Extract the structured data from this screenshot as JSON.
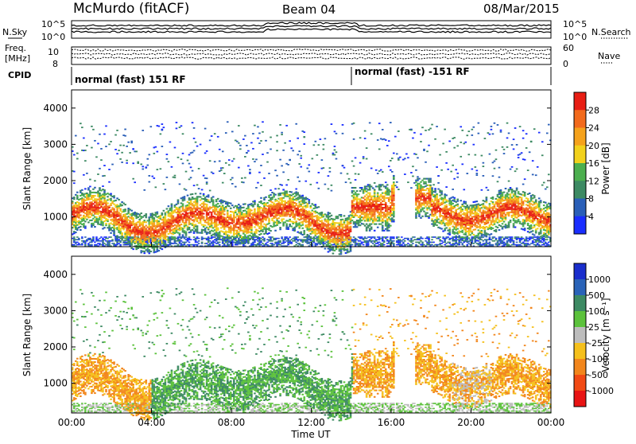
{
  "header": {
    "station": "McMurdo (fitACF)",
    "beam": "Beam 04",
    "date": "08/Mar/2015"
  },
  "top_panels": {
    "nsky_label": "N.Sky",
    "nsearch_label": "N.Search",
    "noise_ticks_left": [
      "10^5",
      "10^0"
    ],
    "noise_ticks_right": [
      "10^5",
      "10^0"
    ],
    "freq_label_line1": "Freq.",
    "freq_label_line2": "[MHz]",
    "freq_ticks": [
      "8",
      "10"
    ],
    "nave_label": "Nave",
    "nave_ticks": [
      "60",
      "0"
    ],
    "cpid_label": "CPID",
    "cpid_segments": [
      {
        "text": "normal (fast) 151 RF",
        "start_hour": 0
      },
      {
        "text": "normal (fast) -151 RF",
        "start_hour": 14
      }
    ]
  },
  "chart_data": [
    {
      "type": "heatmap",
      "title": "",
      "xlabel": "Time UT",
      "ylabel": "Slant Range [km]",
      "xlim": [
        0,
        24
      ],
      "ylim": [
        180,
        4500
      ],
      "x_ticks": [
        "00:00",
        "04:00",
        "08:00",
        "12:00",
        "16:00",
        "20:00",
        "00:00"
      ],
      "y_ticks": [
        "1000",
        "2000",
        "3000",
        "4000"
      ],
      "colorbar": {
        "label": "Power [dB]",
        "ticks": [
          "4",
          "8",
          "12",
          "16",
          "20",
          "24",
          "28"
        ],
        "range": [
          0,
          30
        ],
        "colors": [
          "#1a2eff",
          "#2a5fb8",
          "#3d8a63",
          "#4caf4f",
          "#f2d11c",
          "#f5a21c",
          "#f26a1c",
          "#e81e14"
        ]
      }
    },
    {
      "type": "heatmap",
      "title": "",
      "xlabel": "Time UT",
      "ylabel": "Slant Range [km]",
      "xlim": [
        0,
        24
      ],
      "ylim": [
        180,
        4500
      ],
      "x_ticks": [
        "00:00",
        "04:00",
        "08:00",
        "12:00",
        "16:00",
        "20:00",
        "00:00"
      ],
      "y_ticks": [
        "1000",
        "2000",
        "3000",
        "4000"
      ],
      "colorbar": {
        "label": "Velocity [m s⁻¹]",
        "ticks": [
          "1000",
          "500",
          "100",
          "25",
          "-25",
          "-100",
          "-500",
          "-1000"
        ],
        "range": [
          -1200,
          1200
        ],
        "colors": [
          "#1a2ecc",
          "#2a63b8",
          "#3d8a63",
          "#5cc23c",
          "#bdbdbd",
          "#f5c01c",
          "#f2861c",
          "#f24a14",
          "#e81414"
        ]
      }
    }
  ]
}
